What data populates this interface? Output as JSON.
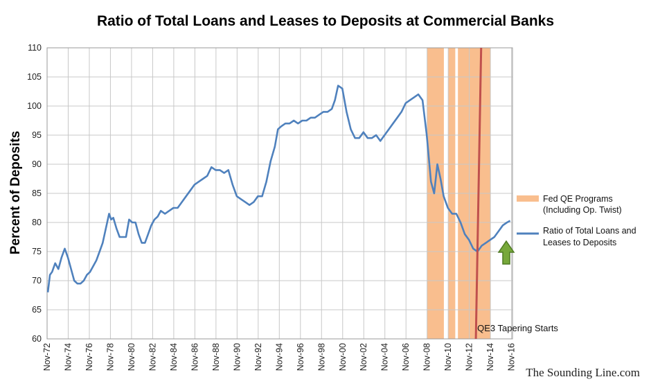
{
  "colors": {
    "line": "#4f81bd",
    "qe_band": "#f9be8e",
    "taper_line": "#c0504d",
    "arrow_fill": "#77a83a",
    "arrow_stroke": "#4e7a22",
    "grid": "#c8c8c8"
  },
  "chart_data": {
    "type": "line",
    "title": "Ratio of Total Loans and Leases to Deposits at Commercial Banks",
    "ylabel": "Percent of Deposits",
    "xlabel": "",
    "ylim": [
      60,
      110
    ],
    "yticks": [
      60,
      65,
      70,
      75,
      80,
      85,
      90,
      95,
      100,
      105,
      110
    ],
    "xlim": [
      1972.83,
      2016.92
    ],
    "xtick_labels": [
      "Nov-72",
      "Nov-74",
      "Nov-76",
      "Nov-78",
      "Nov-80",
      "Nov-82",
      "Nov-84",
      "Nov-86",
      "Nov-88",
      "Nov-90",
      "Nov-92",
      "Nov-94",
      "Nov-96",
      "Nov-98",
      "Nov-00",
      "Nov-02",
      "Nov-04",
      "Nov-06",
      "Nov-08",
      "Nov-10",
      "Nov-12",
      "Nov-14",
      "Nov-16"
    ],
    "grid": "vertical and horizontal",
    "legend_position": "right",
    "series": [
      {
        "name": "Ratio of Total Loans and Leases to Deposits",
        "x": [
          1972.9,
          1973.1,
          1973.3,
          1973.6,
          1973.9,
          1974.2,
          1974.5,
          1974.8,
          1975.1,
          1975.4,
          1975.7,
          1976.0,
          1976.3,
          1976.6,
          1976.9,
          1977.2,
          1977.5,
          1977.8,
          1978.1,
          1978.4,
          1978.7,
          1978.9,
          1979.1,
          1979.4,
          1979.7,
          1980.0,
          1980.3,
          1980.6,
          1980.9,
          1981.2,
          1981.5,
          1981.8,
          1982.1,
          1982.4,
          1982.7,
          1983.0,
          1983.3,
          1983.6,
          1984.0,
          1984.4,
          1984.8,
          1985.2,
          1985.6,
          1986.0,
          1986.4,
          1986.8,
          1987.2,
          1987.6,
          1988.0,
          1988.4,
          1988.8,
          1989.2,
          1989.6,
          1990.0,
          1990.4,
          1990.8,
          1991.2,
          1991.6,
          1992.0,
          1992.4,
          1992.8,
          1993.2,
          1993.6,
          1994.0,
          1994.4,
          1994.7,
          1995.0,
          1995.4,
          1995.8,
          1996.2,
          1996.6,
          1997.0,
          1997.4,
          1997.8,
          1998.2,
          1998.6,
          1999.0,
          1999.4,
          1999.8,
          2000.1,
          2000.4,
          2000.8,
          2001.2,
          2001.6,
          2002.0,
          2002.4,
          2002.8,
          2003.2,
          2003.6,
          2004.0,
          2004.4,
          2004.8,
          2005.2,
          2005.6,
          2006.0,
          2006.4,
          2006.8,
          2007.2,
          2007.6,
          2008.0,
          2008.4,
          2008.8,
          2009.2,
          2009.5,
          2009.8,
          2010.1,
          2010.4,
          2010.8,
          2011.2,
          2011.6,
          2012.0,
          2012.4,
          2012.8,
          2013.2,
          2013.6,
          2014.0,
          2014.4,
          2014.8,
          2015.2,
          2015.6,
          2016.0,
          2016.4,
          2016.7
        ],
        "y": [
          68.0,
          71.0,
          71.5,
          73.0,
          72.0,
          74.0,
          75.5,
          74.0,
          72.0,
          70.0,
          69.5,
          69.5,
          70.0,
          71.0,
          71.5,
          72.5,
          73.5,
          75.0,
          76.5,
          79.0,
          81.5,
          80.5,
          80.8,
          79.0,
          77.5,
          77.5,
          77.5,
          80.5,
          80.0,
          80.0,
          78.0,
          76.5,
          76.5,
          78.0,
          79.5,
          80.5,
          81.0,
          82.0,
          81.5,
          82.0,
          82.5,
          82.5,
          83.5,
          84.5,
          85.5,
          86.5,
          87.0,
          87.5,
          88.0,
          89.5,
          89.0,
          89.0,
          88.5,
          89.0,
          86.5,
          84.5,
          84.0,
          83.5,
          83.0,
          83.5,
          84.5,
          84.5,
          87.0,
          90.5,
          93.0,
          96.0,
          96.5,
          97.0,
          97.0,
          97.5,
          97.0,
          97.5,
          97.5,
          98.0,
          98.0,
          98.5,
          99.0,
          99.0,
          99.5,
          101.0,
          103.5,
          103.0,
          99.0,
          96.0,
          94.5,
          94.5,
          95.5,
          94.5,
          94.5,
          95.0,
          94.0,
          95.0,
          96.0,
          97.0,
          98.0,
          99.0,
          100.5,
          101.0,
          101.5,
          102.0,
          101.0,
          95.0,
          87.0,
          85.0,
          90.0,
          87.5,
          84.5,
          82.5,
          81.5,
          81.5,
          80.0,
          78.0,
          77.0,
          75.5,
          75.0,
          76.0,
          76.5,
          77.0,
          77.5,
          78.5,
          79.5,
          80.0,
          80.3
        ]
      }
    ],
    "qe_bands": [
      [
        2008.83,
        2010.42
      ],
      [
        2010.83,
        2011.5
      ],
      [
        2011.75,
        2014.83
      ]
    ],
    "taper_marker": {
      "x_bottom": 2013.45,
      "x_top": 2013.95,
      "label": "QE3 Tapering  Starts"
    },
    "legend": [
      {
        "label_lines": [
          "Fed QE Programs",
          "(Including Op. Twist)"
        ],
        "type": "band"
      },
      {
        "label_lines": [
          "Ratio of Total Loans and",
          "Leases to Deposits"
        ],
        "type": "line"
      }
    ]
  },
  "watermark": "The Sounding Line.com",
  "arrow_icon": "up-arrow-icon"
}
